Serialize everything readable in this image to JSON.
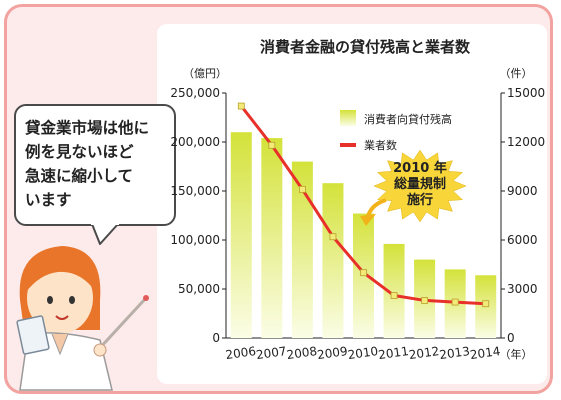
{
  "speech_bubble": {
    "lines": [
      "貸金業市場は他に",
      "例を見ないほど",
      "急速に縮小して",
      "います"
    ]
  },
  "colors": {
    "frame": "#f2a3a0",
    "background": "#fdeaea",
    "bar_fill_top": "#d4e23a",
    "bar_fill_bottom": "#fbfde6",
    "line": "#e8302a",
    "marker": "#f4ea7a",
    "burst": "#f8d63a",
    "arrow": "#f2b21a"
  },
  "chart_data": {
    "type": "bar",
    "title": "消費者金融の貸付残高と業者数",
    "left_unit": "（億円）",
    "right_unit": "（件）",
    "x_unit": "（年）",
    "categories": [
      "2006",
      "2007",
      "2008",
      "2009",
      "2010",
      "2011",
      "2012",
      "2013",
      "2014"
    ],
    "left_axis": {
      "ylim": [
        0,
        250000
      ],
      "ticks": [
        "0",
        "50,000",
        "100,000",
        "150,000",
        "200,000",
        "250,000"
      ],
      "tick_values": [
        0,
        50000,
        100000,
        150000,
        200000,
        250000
      ]
    },
    "right_axis": {
      "ylim": [
        0,
        15000
      ],
      "ticks": [
        "0",
        "3000",
        "6000",
        "9000",
        "12000",
        "15000"
      ],
      "tick_values": [
        0,
        3000,
        6000,
        9000,
        12000,
        15000
      ]
    },
    "series": [
      {
        "name": "消費者向貸付残高",
        "kind": "bar",
        "axis": "left",
        "values": [
          210000,
          204000,
          180000,
          158000,
          127000,
          96000,
          80000,
          70000,
          64000
        ]
      },
      {
        "name": "業者数",
        "kind": "line",
        "axis": "right",
        "values": [
          14200,
          11800,
          9100,
          6200,
          4000,
          2600,
          2300,
          2200,
          2100
        ]
      }
    ],
    "annotation": {
      "lines": [
        "2010 年",
        "総量規制",
        "施行"
      ]
    },
    "grid": false,
    "legend_position": "top-right"
  }
}
